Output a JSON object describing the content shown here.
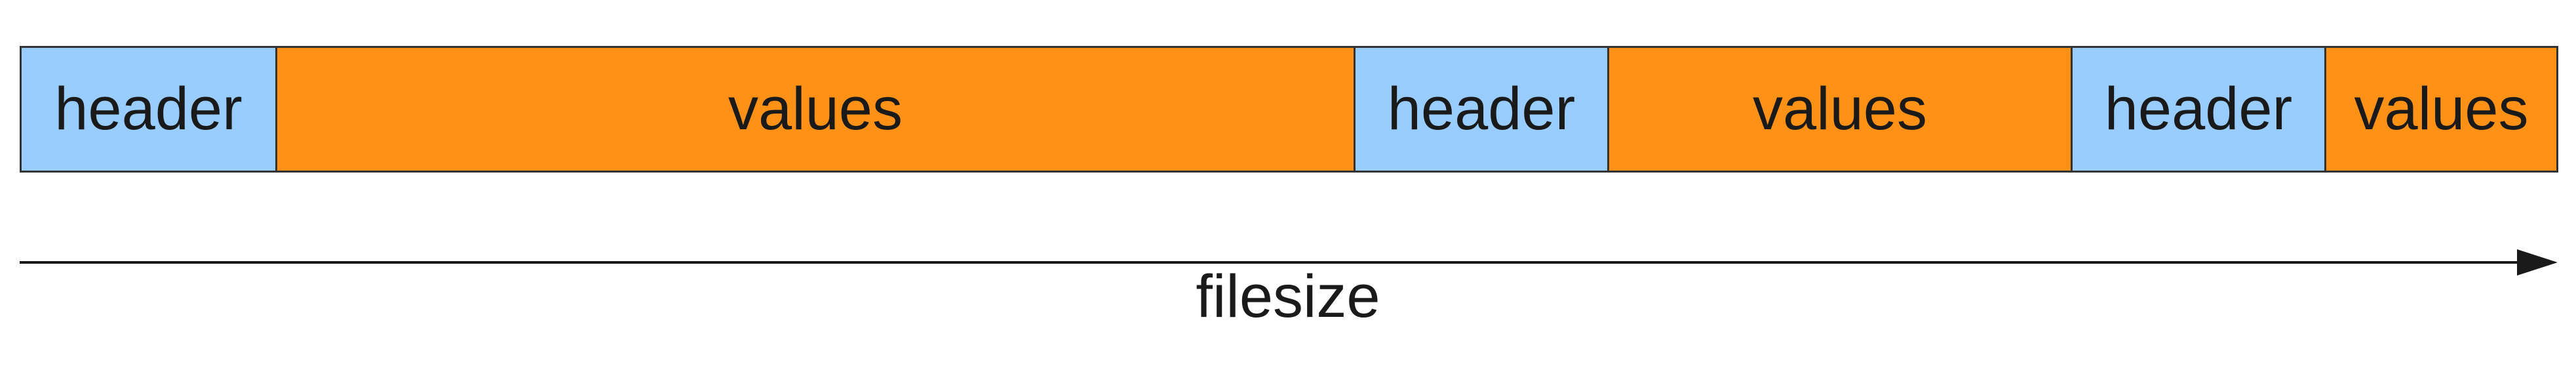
{
  "segments": [
    {
      "label": "header",
      "kind": "header"
    },
    {
      "label": "values",
      "kind": "values"
    },
    {
      "label": "header",
      "kind": "header"
    },
    {
      "label": "values",
      "kind": "values"
    },
    {
      "label": "header",
      "kind": "header"
    },
    {
      "label": "values",
      "kind": "values"
    }
  ],
  "axis": {
    "label": "filesize"
  },
  "colors": {
    "header": "#99ccff",
    "values": "#ff9216",
    "border": "#333333"
  }
}
